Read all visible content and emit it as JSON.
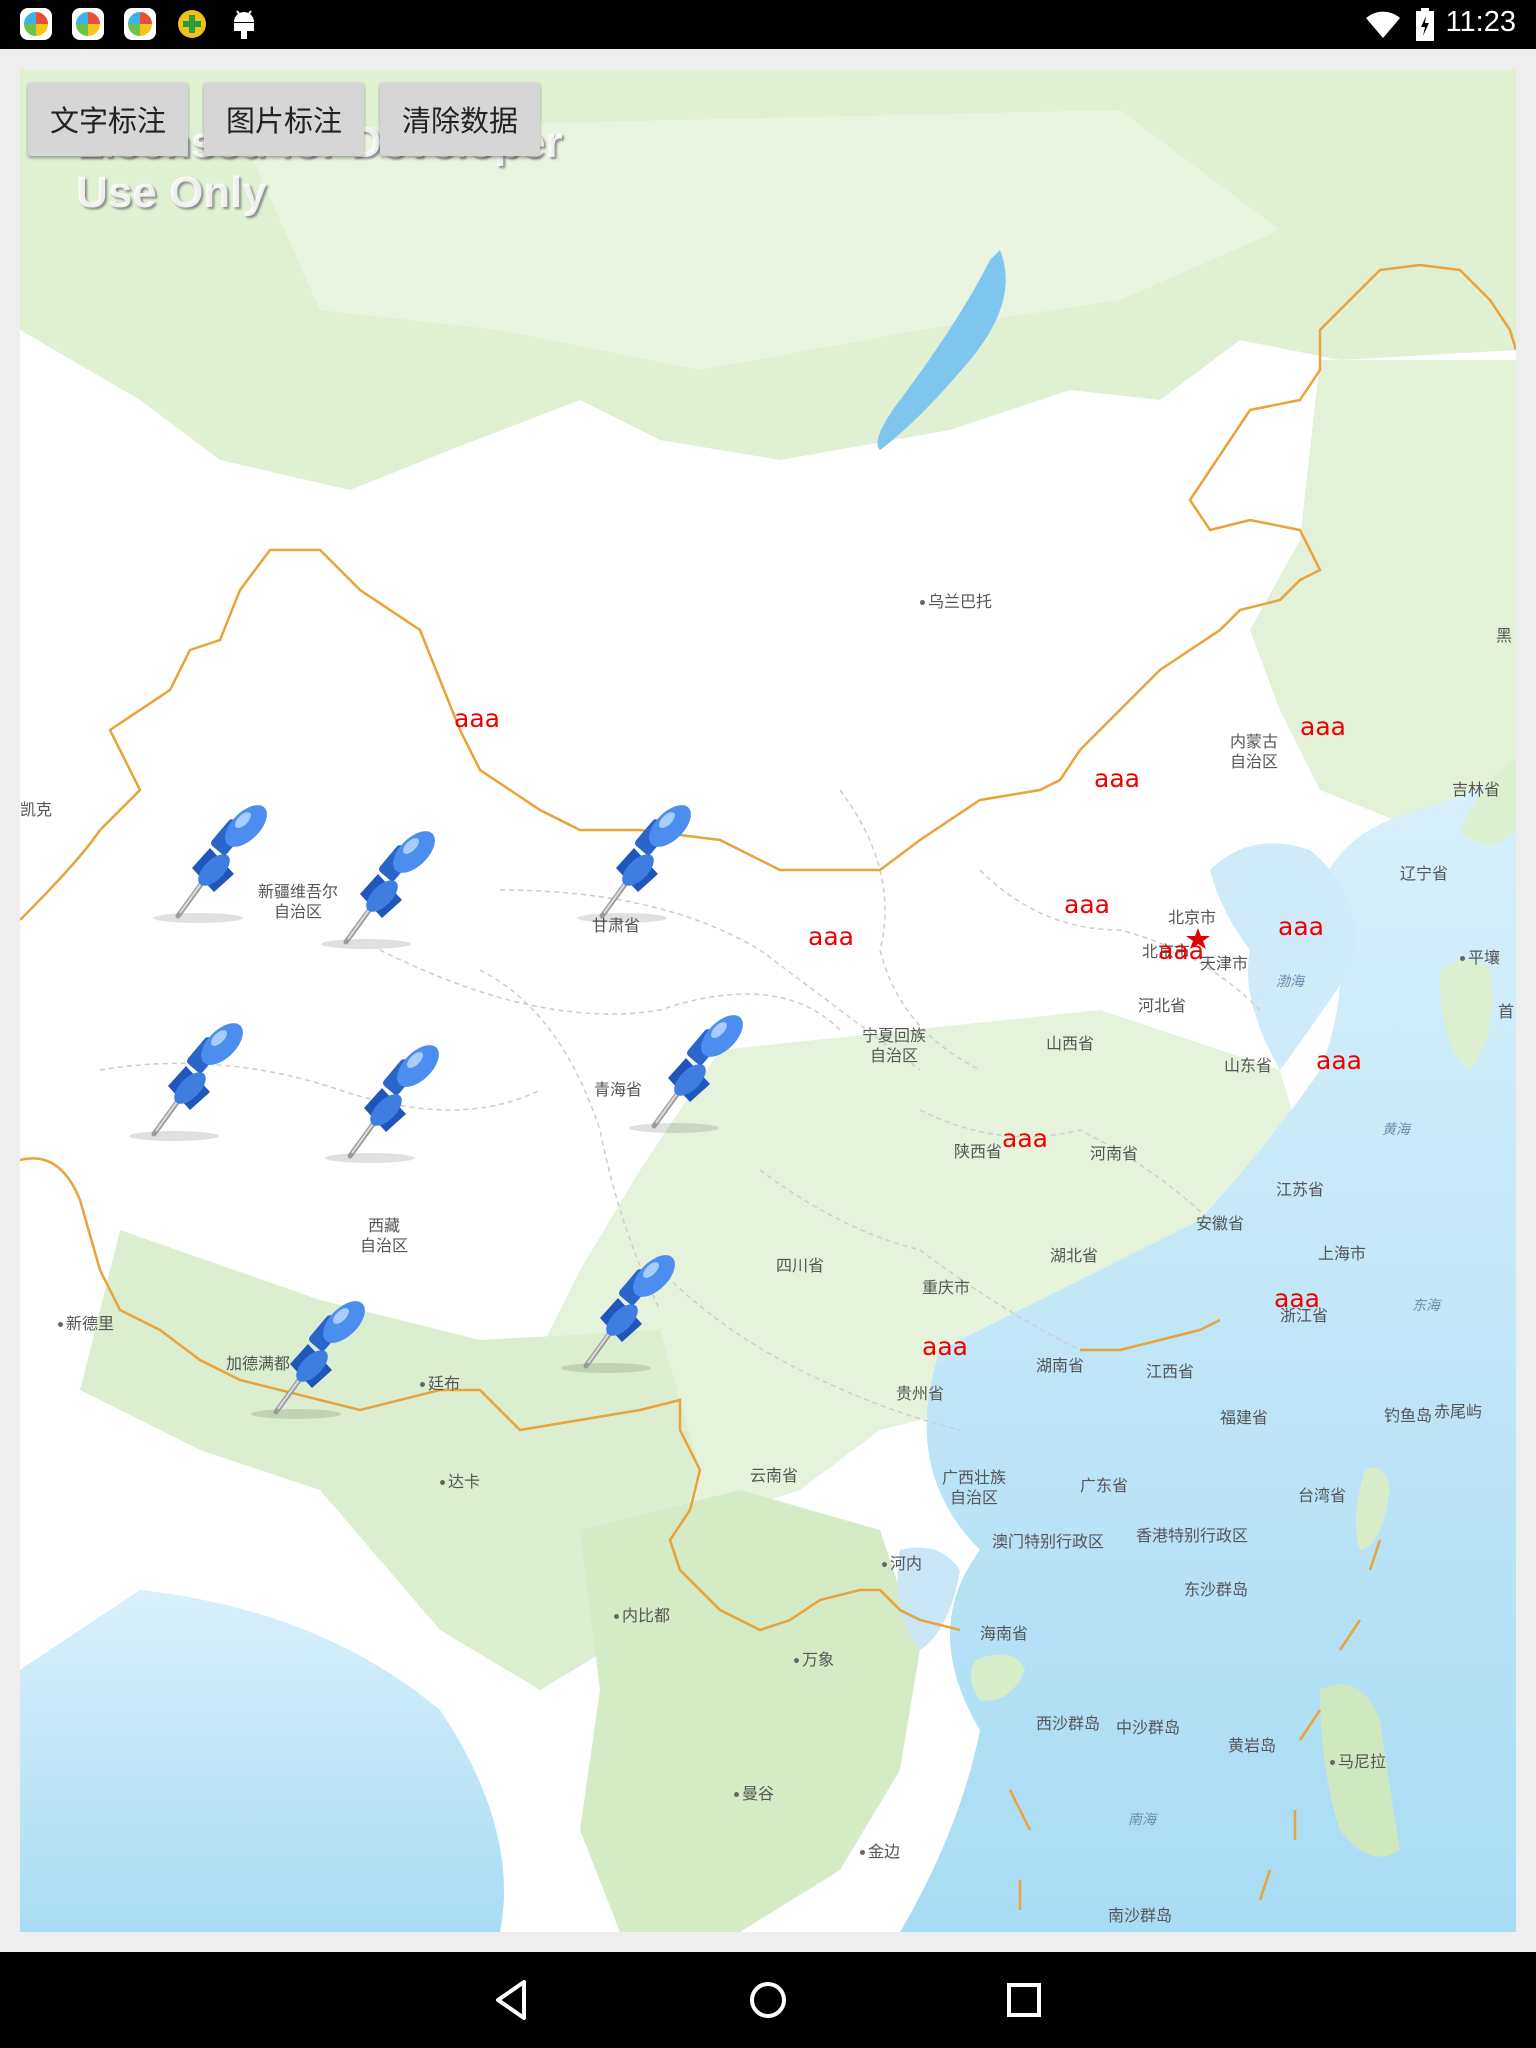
{
  "status_bar": {
    "time": "11:23",
    "icons": [
      "app-icon-1",
      "app-icon-2",
      "app-icon-3",
      "app-icon-4",
      "android-icon",
      "wifi-icon",
      "battery-icon"
    ]
  },
  "toolbar": {
    "text_mark_label": "文字标注",
    "image_mark_label": "图片标注",
    "clear_label": "清除数据"
  },
  "watermark": {
    "line1": "Licensed for Developer",
    "line2": "Use Only"
  },
  "map": {
    "places": [
      {
        "name": "乌兰巴托"
      },
      {
        "name": "内蒙古\n自治区"
      },
      {
        "name": "吉林省"
      },
      {
        "name": "黑"
      },
      {
        "name": "辽宁省"
      },
      {
        "name": "平壤"
      },
      {
        "name": "首"
      },
      {
        "name": "北京市"
      },
      {
        "name": "北京市"
      },
      {
        "name": "天津市"
      },
      {
        "name": "渤海"
      },
      {
        "name": "河北省"
      },
      {
        "name": "山西省"
      },
      {
        "name": "山东省"
      },
      {
        "name": "黄海"
      },
      {
        "name": "宁夏回族\n自治区"
      },
      {
        "name": "陕西省"
      },
      {
        "name": "河南省"
      },
      {
        "name": "江苏省"
      },
      {
        "name": "安徽省"
      },
      {
        "name": "上海市"
      },
      {
        "name": "湖北省"
      },
      {
        "name": "浙江省"
      },
      {
        "name": "东海"
      },
      {
        "name": "四川省"
      },
      {
        "name": "重庆市"
      },
      {
        "name": "湖南省"
      },
      {
        "name": "江西省"
      },
      {
        "name": "贵州省"
      },
      {
        "name": "福建省"
      },
      {
        "name": "钓鱼岛"
      },
      {
        "name": "赤尾屿"
      },
      {
        "name": "台湾省"
      },
      {
        "name": "云南省"
      },
      {
        "name": "广西壮族\n自治区"
      },
      {
        "name": "广东省"
      },
      {
        "name": "澳门特别行政区"
      },
      {
        "name": "香港特别行政区"
      },
      {
        "name": "河内"
      },
      {
        "name": "东沙群岛"
      },
      {
        "name": "海南省"
      },
      {
        "name": "内比都"
      },
      {
        "name": "万象"
      },
      {
        "name": "西沙群岛"
      },
      {
        "name": "中沙群岛"
      },
      {
        "name": "黄岩岛"
      },
      {
        "name": "马尼拉"
      },
      {
        "name": "南海"
      },
      {
        "name": "曼谷"
      },
      {
        "name": "金边"
      },
      {
        "name": "南沙群岛"
      },
      {
        "name": "新疆维吾尔\n自治区"
      },
      {
        "name": "甘肃省"
      },
      {
        "name": "青海省"
      },
      {
        "name": "西藏\n自治区"
      },
      {
        "name": "新德里"
      },
      {
        "name": "加德满都"
      },
      {
        "name": "廷布"
      },
      {
        "name": "达卡"
      },
      {
        "name": "凯克"
      }
    ],
    "text_markers": [
      "aaa",
      "aaa",
      "aaa",
      "aaa",
      "aaa",
      "aaa",
      "aaa",
      "aaa",
      "aaa",
      "aaa",
      "aaa",
      "aaa"
    ],
    "pin_count": 9
  },
  "colors": {
    "status_bar": "#000000",
    "button_bg": "#d6d6d6",
    "marker_text": "#ee0000",
    "border_line": "#e8a33a",
    "water": "#cde9f7",
    "land_green": "#dbeecf"
  },
  "nav_bar": {
    "icons": [
      "back-icon",
      "home-icon",
      "recents-icon"
    ]
  }
}
